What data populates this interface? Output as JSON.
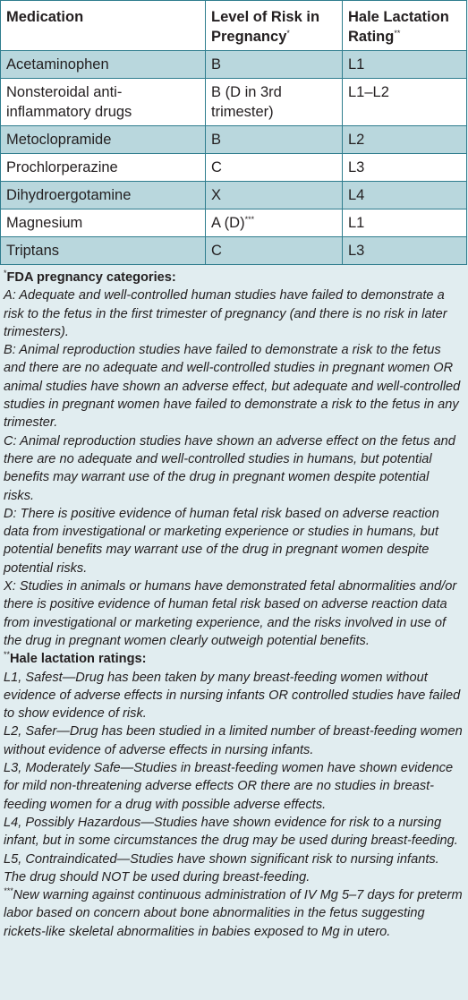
{
  "table": {
    "headers": {
      "medication": "Medication",
      "risk": "Level of Risk in Pregnancy",
      "risk_mark": "*",
      "lactation": "Hale Lactation Rating",
      "lactation_mark": "**"
    },
    "rows": [
      {
        "medication": "Acetaminophen",
        "risk": "B",
        "risk_mark": "",
        "lactation": "L1"
      },
      {
        "medication": "Nonsteroidal anti-inflammatory drugs",
        "risk": "B (D in 3rd trimester)",
        "risk_mark": "",
        "lactation": "L1–L2"
      },
      {
        "medication": "Metoclopramide",
        "risk": "B",
        "risk_mark": "",
        "lactation": "L2"
      },
      {
        "medication": "Prochlorperazine",
        "risk": "C",
        "risk_mark": "",
        "lactation": "L3"
      },
      {
        "medication": "Dihydroergotamine",
        "risk": "X",
        "risk_mark": "",
        "lactation": "L4"
      },
      {
        "medication": "Magnesium",
        "risk": "A (D)",
        "risk_mark": "***",
        "lactation": "L1"
      },
      {
        "medication": "Triptans",
        "risk": "C",
        "risk_mark": "",
        "lactation": "L3"
      }
    ]
  },
  "notes": {
    "fda": {
      "mark": "*",
      "title": "FDA pregnancy categories:",
      "items": [
        "A: Adequate and well-controlled human studies have failed to demonstrate a risk to the fetus in the first trimester of pregnancy (and there is no risk in later trimesters).",
        "B: Animal reproduction studies have failed to demonstrate a risk to the fetus and there are no adequate and well-controlled studies in pregnant women OR animal studies have shown an adverse effect, but adequate and well-controlled studies in pregnant women have failed to demonstrate a risk to the fetus in any trimester.",
        "C: Animal reproduction studies have shown an adverse effect on the fetus and there are no adequate and well-controlled studies in humans, but potential benefits may warrant use of the drug in pregnant women despite potential risks.",
        "D: There is positive evidence of human fetal risk based on adverse reaction data from investigational or marketing experience or studies in humans, but potential benefits may warrant use of the drug in pregnant women despite potential risks.",
        "X: Studies in animals or humans have demonstrated fetal abnormalities and/or there is positive evidence of human fetal risk based on adverse reaction data from investigational or marketing experience, and the risks involved in use of the drug in pregnant women clearly outweigh potential benefits."
      ]
    },
    "hale": {
      "mark": "**",
      "title": "Hale lactation ratings:",
      "items": [
        "L1, Safest—Drug has been taken by many breast-feeding women without evidence of adverse effects in nursing infants OR controlled studies have failed to show evidence of risk.",
        "L2, Safer—Drug has been studied in a limited number of breast-feeding women without evidence of adverse effects in nursing infants.",
        "L3, Moderately Safe—Studies in breast-feeding women have shown evidence for mild non-threatening adverse effects OR there are no studies in breast-feeding women for a drug with possible adverse effects.",
        "L4, Possibly Hazardous—Studies have shown evidence for risk to a nursing infant, but in some circumstances the drug may be used during breast-feeding.",
        "L5, Contraindicated—Studies have shown significant risk to nursing infants. The drug should NOT be used during breast-feeding."
      ]
    },
    "mg": {
      "mark": "***",
      "text": "New warning against continuous administration of IV Mg 5–7 days for preterm labor based on concern about bone abnormalities in the fetus suggesting rickets-like skeletal abnormalities in babies exposed to Mg in utero."
    }
  }
}
